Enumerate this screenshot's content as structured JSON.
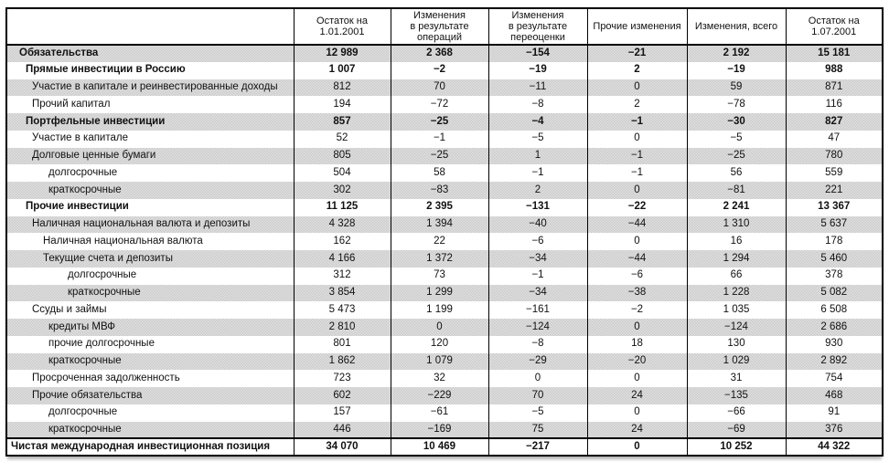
{
  "table": {
    "columns": [
      "Остаток на\n1.01.2001",
      "Изменения\nв результате\nопераций",
      "Изменения\nв результате\nпереоценки",
      "Прочие изменения",
      "Изменения, всего",
      "Остаток на\n1.07.2001"
    ],
    "rows": [
      {
        "label": "Обязательства",
        "level": 1,
        "bold": true,
        "total": false,
        "values": [
          "12 989",
          "2 368",
          "−154",
          "−21",
          "2 192",
          "15 181"
        ]
      },
      {
        "label": "Прямые инвестиции в Россию",
        "level": 2,
        "bold": true,
        "total": false,
        "values": [
          "1 007",
          "−2",
          "−19",
          "2",
          "−19",
          "988"
        ]
      },
      {
        "label": "Участие в капитале и реинвестированные доходы",
        "level": 3,
        "bold": false,
        "total": false,
        "values": [
          "812",
          "70",
          "−11",
          "0",
          "59",
          "871"
        ]
      },
      {
        "label": "Прочий капитал",
        "level": 3,
        "bold": false,
        "total": false,
        "values": [
          "194",
          "−72",
          "−8",
          "2",
          "−78",
          "116"
        ]
      },
      {
        "label": "Портфельные инвестиции",
        "level": 2,
        "bold": true,
        "total": false,
        "values": [
          "857",
          "−25",
          "−4",
          "−1",
          "−30",
          "827"
        ]
      },
      {
        "label": "Участие в капитале",
        "level": 3,
        "bold": false,
        "total": false,
        "values": [
          "52",
          "−1",
          "−5",
          "0",
          "−5",
          "47"
        ]
      },
      {
        "label": "Долговые ценные бумаги",
        "level": 3,
        "bold": false,
        "total": false,
        "values": [
          "805",
          "−25",
          "1",
          "−1",
          "−25",
          "780"
        ]
      },
      {
        "label": "долгосрочные",
        "level": 5,
        "bold": false,
        "total": false,
        "values": [
          "504",
          "58",
          "−1",
          "−1",
          "56",
          "559"
        ]
      },
      {
        "label": "краткосрочные",
        "level": 5,
        "bold": false,
        "total": false,
        "values": [
          "302",
          "−83",
          "2",
          "0",
          "−81",
          "221"
        ]
      },
      {
        "label": "Прочие инвестиции",
        "level": 2,
        "bold": true,
        "total": false,
        "values": [
          "11 125",
          "2 395",
          "−131",
          "−22",
          "2 241",
          "13 367"
        ]
      },
      {
        "label": "Наличная национальная валюта и депозиты",
        "level": 3,
        "bold": false,
        "total": false,
        "values": [
          "4 328",
          "1 394",
          "−40",
          "−44",
          "1 310",
          "5 637"
        ]
      },
      {
        "label": "Наличная национальная валюта",
        "level": 4,
        "bold": false,
        "total": false,
        "values": [
          "162",
          "22",
          "−6",
          "0",
          "16",
          "178"
        ]
      },
      {
        "label": "Текущие счета и депозиты",
        "level": 4,
        "bold": false,
        "total": false,
        "values": [
          "4 166",
          "1 372",
          "−34",
          "−44",
          "1 294",
          "5 460"
        ]
      },
      {
        "label": "долгосрочные",
        "level": 6,
        "bold": false,
        "total": false,
        "values": [
          "312",
          "73",
          "−1",
          "−6",
          "66",
          "378"
        ]
      },
      {
        "label": "краткосрочные",
        "level": 6,
        "bold": false,
        "total": false,
        "values": [
          "3 854",
          "1 299",
          "−34",
          "−38",
          "1 228",
          "5 082"
        ]
      },
      {
        "label": "Ссуды и займы",
        "level": 3,
        "bold": false,
        "total": false,
        "values": [
          "5 473",
          "1 199",
          "−161",
          "−2",
          "1 035",
          "6 508"
        ]
      },
      {
        "label": "кредиты МВФ",
        "level": 5,
        "bold": false,
        "total": false,
        "values": [
          "2 810",
          "0",
          "−124",
          "0",
          "−124",
          "2 686"
        ]
      },
      {
        "label": "прочие долгосрочные",
        "level": 5,
        "bold": false,
        "total": false,
        "values": [
          "801",
          "120",
          "−8",
          "18",
          "130",
          "930"
        ]
      },
      {
        "label": "краткосрочные",
        "level": 5,
        "bold": false,
        "total": false,
        "values": [
          "1 862",
          "1 079",
          "−29",
          "−20",
          "1 029",
          "2 892"
        ]
      },
      {
        "label": "Просроченная задолженность",
        "level": 3,
        "bold": false,
        "total": false,
        "values": [
          "723",
          "32",
          "0",
          "0",
          "31",
          "754"
        ]
      },
      {
        "label": "Прочие обязательства",
        "level": 3,
        "bold": false,
        "total": false,
        "values": [
          "602",
          "−229",
          "70",
          "24",
          "−135",
          "468"
        ]
      },
      {
        "label": "долгосрочные",
        "level": 5,
        "bold": false,
        "total": false,
        "values": [
          "157",
          "−61",
          "−5",
          "0",
          "−66",
          "91"
        ]
      },
      {
        "label": "краткосрочные",
        "level": 5,
        "bold": false,
        "total": false,
        "values": [
          "446",
          "−169",
          "75",
          "24",
          "−69",
          "376"
        ]
      },
      {
        "label": "Чистая международная инвестиционная позиция",
        "level": 0,
        "bold": true,
        "total": true,
        "values": [
          "34 070",
          "10 469",
          "−217",
          "0",
          "10 252",
          "44 322"
        ]
      }
    ]
  },
  "colors": {
    "border": "#000000",
    "row_shade": "#e0e0e0",
    "text": "#111111"
  }
}
